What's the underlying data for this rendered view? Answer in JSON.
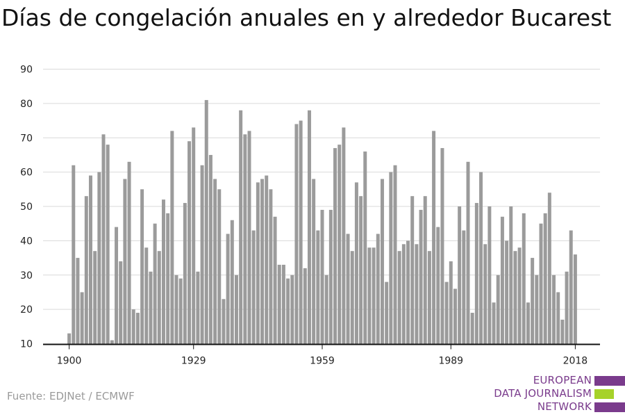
{
  "chart_data": {
    "type": "bar",
    "title": "Días de congelación anuales en y alrededor Bucarest",
    "xlabel": "",
    "ylabel": "",
    "ylim": [
      10,
      90
    ],
    "yticks": [
      10,
      20,
      30,
      40,
      50,
      60,
      70,
      80,
      90
    ],
    "xticks": [
      1900,
      1929,
      1959,
      1989,
      2018
    ],
    "xlim": [
      1900,
      2018
    ],
    "grid": true,
    "bar_color": "#9b9b9b",
    "x": [
      1900,
      1901,
      1902,
      1903,
      1904,
      1905,
      1906,
      1907,
      1908,
      1909,
      1910,
      1911,
      1912,
      1913,
      1914,
      1915,
      1916,
      1917,
      1918,
      1919,
      1920,
      1921,
      1922,
      1923,
      1924,
      1925,
      1926,
      1927,
      1928,
      1929,
      1930,
      1931,
      1932,
      1933,
      1934,
      1935,
      1936,
      1937,
      1938,
      1939,
      1940,
      1941,
      1942,
      1943,
      1944,
      1945,
      1946,
      1947,
      1948,
      1949,
      1950,
      1951,
      1952,
      1953,
      1954,
      1955,
      1956,
      1957,
      1958,
      1959,
      1960,
      1961,
      1962,
      1963,
      1964,
      1965,
      1966,
      1967,
      1968,
      1969,
      1970,
      1971,
      1972,
      1973,
      1974,
      1975,
      1976,
      1977,
      1978,
      1979,
      1980,
      1981,
      1982,
      1983,
      1984,
      1985,
      1986,
      1987,
      1988,
      1989,
      1990,
      1991,
      1992,
      1993,
      1994,
      1995,
      1996,
      1997,
      1998,
      1999,
      2000,
      2001,
      2002,
      2003,
      2004,
      2005,
      2006,
      2007,
      2008,
      2009,
      2010,
      2011,
      2012,
      2013,
      2014,
      2015,
      2016,
      2017,
      2018
    ],
    "values": [
      13,
      62,
      35,
      25,
      53,
      59,
      37,
      60,
      71,
      68,
      11,
      44,
      34,
      58,
      63,
      20,
      19,
      55,
      38,
      31,
      45,
      37,
      52,
      48,
      72,
      30,
      29,
      51,
      69,
      73,
      31,
      62,
      81,
      65,
      58,
      55,
      23,
      42,
      46,
      30,
      78,
      71,
      72,
      43,
      57,
      58,
      59,
      55,
      47,
      33,
      33,
      29,
      30,
      74,
      75,
      32,
      78,
      58,
      43,
      49,
      30,
      49,
      67,
      68,
      73,
      42,
      37,
      57,
      53,
      66,
      38,
      38,
      42,
      58,
      28,
      60,
      62,
      37,
      39,
      40,
      53,
      39,
      49,
      53,
      37,
      72,
      44,
      67,
      28,
      34,
      26,
      50,
      43,
      63,
      19,
      51,
      60,
      39,
      50,
      22,
      30,
      47,
      40,
      50,
      37,
      38,
      48,
      22,
      35,
      30,
      45,
      48,
      54,
      30,
      25,
      17,
      31,
      43,
      36
    ]
  },
  "source": "Fuente: EDJNet / ECMWF",
  "logo": {
    "lines": [
      "EUROPEAN",
      "DATA JOURNALISM",
      "NETWORK"
    ],
    "colors": {
      "purple": "#7a3b8c",
      "green": "#a6d22a"
    }
  }
}
